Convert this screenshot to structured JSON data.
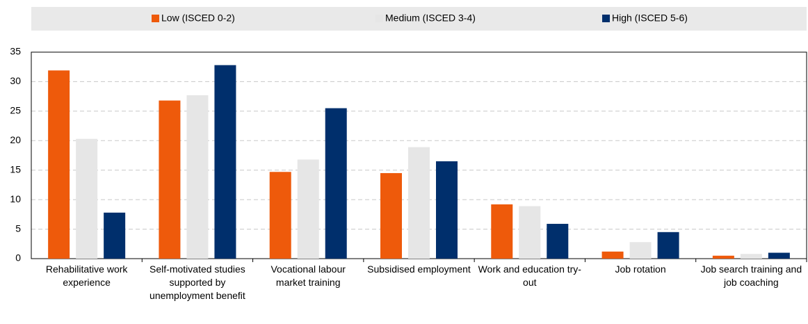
{
  "chart_data": {
    "type": "bar",
    "categories": [
      "Rehabilitative work experience",
      "Self-motivated studies supported by unemployment benefit",
      "Vocational labour market training",
      "Subsidised employment",
      "Work and education try-out",
      "Job rotation",
      "Job search training and job coaching"
    ],
    "series": [
      {
        "name": "Low (ISCED 0-2)",
        "color": "#ee5a0b",
        "values": [
          31.9,
          26.8,
          14.7,
          14.5,
          9.2,
          1.2,
          0.5
        ]
      },
      {
        "name": "Medium (ISCED 3-4)",
        "color": "#e6e6e6",
        "values": [
          20.3,
          27.7,
          16.8,
          18.9,
          8.9,
          2.8,
          0.8
        ]
      },
      {
        "name": "High (ISCED 5-6)",
        "color": "#002f6c",
        "values": [
          7.8,
          32.8,
          25.5,
          16.5,
          5.9,
          4.5,
          1.0
        ]
      }
    ],
    "ylim": [
      0,
      35
    ],
    "yticks": [
      0,
      5,
      10,
      15,
      20,
      25,
      30,
      35
    ],
    "grid": true,
    "legend": "top"
  }
}
